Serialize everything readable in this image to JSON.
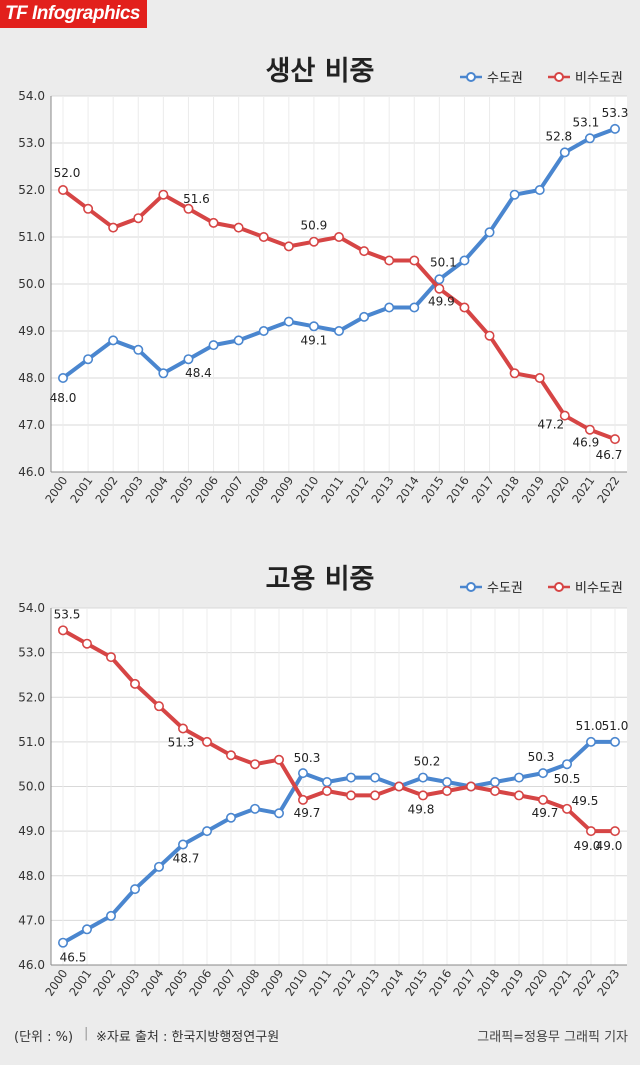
{
  "header": {
    "brand": "TF Infographics"
  },
  "legend": {
    "capital": "수도권",
    "noncapital": "비수도권"
  },
  "colors": {
    "capital": "#4a86cf",
    "noncapital": "#d64545",
    "brand": "#e2201c"
  },
  "chart_data": [
    {
      "type": "line",
      "title": "생산 비중",
      "x": [
        "2000",
        "2001",
        "2002",
        "2003",
        "2004",
        "2005",
        "2006",
        "2007",
        "2008",
        "2009",
        "2010",
        "2011",
        "2012",
        "2013",
        "2014",
        "2015",
        "2016",
        "2017",
        "2018",
        "2019",
        "2020",
        "2021",
        "2022"
      ],
      "ylim": [
        46.0,
        54.0
      ],
      "yticks": [
        "46.0",
        "47.0",
        "48.0",
        "49.0",
        "50.0",
        "51.0",
        "52.0",
        "53.0",
        "54.0"
      ],
      "grid": true,
      "legend_position": "top-right",
      "series": [
        {
          "name": "수도권",
          "values": [
            48.0,
            48.4,
            48.8,
            48.6,
            48.1,
            48.4,
            48.7,
            48.8,
            49.0,
            49.2,
            49.1,
            49.0,
            49.3,
            49.5,
            49.5,
            50.1,
            50.5,
            51.1,
            51.9,
            52.0,
            52.8,
            53.1,
            53.3
          ],
          "labels": [
            {
              "i": 0,
              "text": "48.0"
            },
            {
              "i": 5,
              "text": "48.4"
            },
            {
              "i": 10,
              "text": "49.1"
            },
            {
              "i": 15,
              "text": "50.1"
            },
            {
              "i": 20,
              "text": "52.8"
            },
            {
              "i": 21,
              "text": "53.1"
            },
            {
              "i": 22,
              "text": "53.3"
            }
          ]
        },
        {
          "name": "비수도권",
          "values": [
            52.0,
            51.6,
            51.2,
            51.4,
            51.9,
            51.6,
            51.3,
            51.2,
            51.0,
            50.8,
            50.9,
            51.0,
            50.7,
            50.5,
            50.5,
            49.9,
            49.5,
            48.9,
            48.1,
            48.0,
            47.2,
            46.9,
            46.7
          ],
          "labels": [
            {
              "i": 0,
              "text": "52.0"
            },
            {
              "i": 5,
              "text": "51.6"
            },
            {
              "i": 10,
              "text": "50.9"
            },
            {
              "i": 15,
              "text": "49.9"
            },
            {
              "i": 20,
              "text": "47.2"
            },
            {
              "i": 21,
              "text": "46.9"
            },
            {
              "i": 22,
              "text": "46.7"
            }
          ]
        }
      ]
    },
    {
      "type": "line",
      "title": "고용 비중",
      "x": [
        "2000",
        "2001",
        "2002",
        "2003",
        "2004",
        "2005",
        "2006",
        "2007",
        "2008",
        "2009",
        "2010",
        "2011",
        "2012",
        "2013",
        "2014",
        "2015",
        "2016",
        "2017",
        "2018",
        "2019",
        "2020",
        "2021",
        "2022",
        "2023"
      ],
      "ylim": [
        46.0,
        54.0
      ],
      "yticks": [
        "46.0",
        "47.0",
        "48.0",
        "49.0",
        "50.0",
        "51.0",
        "52.0",
        "53.0",
        "54.0"
      ],
      "grid": true,
      "legend_position": "top-right",
      "series": [
        {
          "name": "수도권",
          "values": [
            46.5,
            46.8,
            47.1,
            47.7,
            48.2,
            48.7,
            49.0,
            49.3,
            49.5,
            49.4,
            50.3,
            50.1,
            50.2,
            50.2,
            50.0,
            50.2,
            50.1,
            50.0,
            50.1,
            50.2,
            50.3,
            50.5,
            51.0,
            51.0
          ],
          "labels": [
            {
              "i": 0,
              "text": "46.5"
            },
            {
              "i": 5,
              "text": "48.7"
            },
            {
              "i": 10,
              "text": "50.3"
            },
            {
              "i": 15,
              "text": "50.2"
            },
            {
              "i": 20,
              "text": "50.3"
            },
            {
              "i": 21,
              "text": "50.5"
            },
            {
              "i": 22,
              "text": "51.0"
            },
            {
              "i": 23,
              "text": "51.0"
            }
          ]
        },
        {
          "name": "비수도권",
          "values": [
            53.5,
            53.2,
            52.9,
            52.3,
            51.8,
            51.3,
            51.0,
            50.7,
            50.5,
            50.6,
            49.7,
            49.9,
            49.8,
            49.8,
            50.0,
            49.8,
            49.9,
            50.0,
            49.9,
            49.8,
            49.7,
            49.5,
            49.0,
            49.0
          ],
          "labels": [
            {
              "i": 0,
              "text": "53.5"
            },
            {
              "i": 5,
              "text": "51.3"
            },
            {
              "i": 10,
              "text": "49.7"
            },
            {
              "i": 15,
              "text": "49.8"
            },
            {
              "i": 20,
              "text": "49.7"
            },
            {
              "i": 21,
              "text": "49.5"
            },
            {
              "i": 22,
              "text": "49.0"
            },
            {
              "i": 23,
              "text": "49.0"
            }
          ]
        }
      ]
    }
  ],
  "footer": {
    "unit": "(단위 : %)",
    "divider": "|",
    "source": "※자료 출처 : 한국지방행정연구원",
    "credit": "그래픽=정용무 그래픽 기자"
  }
}
